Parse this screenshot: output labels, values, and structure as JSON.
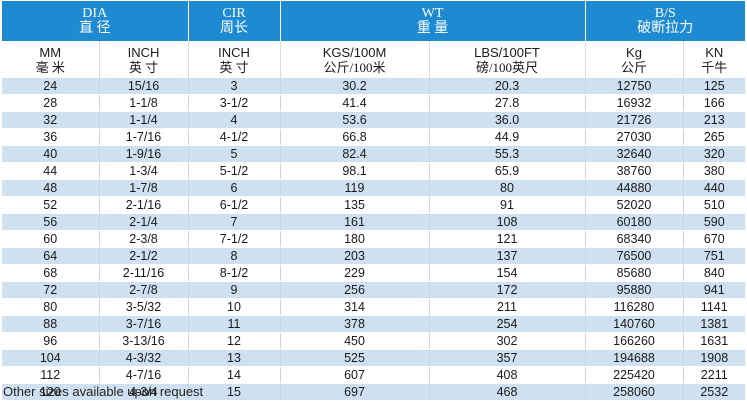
{
  "groups": [
    {
      "en": "DIA",
      "cn": "直 径"
    },
    {
      "en": "CIR",
      "cn": "周长"
    },
    {
      "en": "WT",
      "cn": "重 量"
    },
    {
      "en": "B/S",
      "cn": "破断拉力"
    }
  ],
  "units": [
    {
      "en": "MM",
      "cn": "毫 米"
    },
    {
      "en": "INCH",
      "cn": "英 寸"
    },
    {
      "en": "INCH",
      "cn": "英 寸"
    },
    {
      "en": "KGS/100M",
      "cn": "公斤/100米"
    },
    {
      "en": "LBS/100FT",
      "cn": "磅/100英尺"
    },
    {
      "en": "Kg",
      "cn": "公斤"
    },
    {
      "en": "KN",
      "cn": "千牛"
    }
  ],
  "rows": [
    [
      "24",
      "15/16",
      "3",
      "30.2",
      "20.3",
      "12750",
      "125"
    ],
    [
      "28",
      "1-1/8",
      "3-1/2",
      "41.4",
      "27.8",
      "16932",
      "166"
    ],
    [
      "32",
      "1-1/4",
      "4",
      "53.6",
      "36.0",
      "21726",
      "213"
    ],
    [
      "36",
      "1-7/16",
      "4-1/2",
      "66.8",
      "44.9",
      "27030",
      "265"
    ],
    [
      "40",
      "1-9/16",
      "5",
      "82.4",
      "55.3",
      "32640",
      "320"
    ],
    [
      "44",
      "1-3/4",
      "5-1/2",
      "98.1",
      "65.9",
      "38760",
      "380"
    ],
    [
      "48",
      "1-7/8",
      "6",
      "119",
      "80",
      "44880",
      "440"
    ],
    [
      "52",
      "2-1/16",
      "6-1/2",
      "135",
      "91",
      "52020",
      "510"
    ],
    [
      "56",
      "2-1/4",
      "7",
      "161",
      "108",
      "60180",
      "590"
    ],
    [
      "60",
      "2-3/8",
      "7-1/2",
      "180",
      "121",
      "68340",
      "670"
    ],
    [
      "64",
      "2-1/2",
      "8",
      "203",
      "137",
      "76500",
      "751"
    ],
    [
      "68",
      "2-11/16",
      "8-1/2",
      "229",
      "154",
      "85680",
      "840"
    ],
    [
      "72",
      "2-7/8",
      "9",
      "256",
      "172",
      "95880",
      "941"
    ],
    [
      "80",
      "3-5/32",
      "10",
      "314",
      "211",
      "116280",
      "1141"
    ],
    [
      "88",
      "3-7/16",
      "11",
      "378",
      "254",
      "140760",
      "1381"
    ],
    [
      "96",
      "3-13/16",
      "12",
      "450",
      "302",
      "166260",
      "1631"
    ],
    [
      "104",
      "4-3/32",
      "13",
      "525",
      "357",
      "194688",
      "1908"
    ],
    [
      "112",
      "4-7/16",
      "14",
      "607",
      "408",
      "225420",
      "2211"
    ],
    [
      "120",
      "4-3/4",
      "15",
      "697",
      "468",
      "258060",
      "2532"
    ]
  ],
  "footnote": "Other sizes available upon request",
  "colors": {
    "header_bg": "#1d8ad1",
    "stripe": "#cfe0f1"
  }
}
